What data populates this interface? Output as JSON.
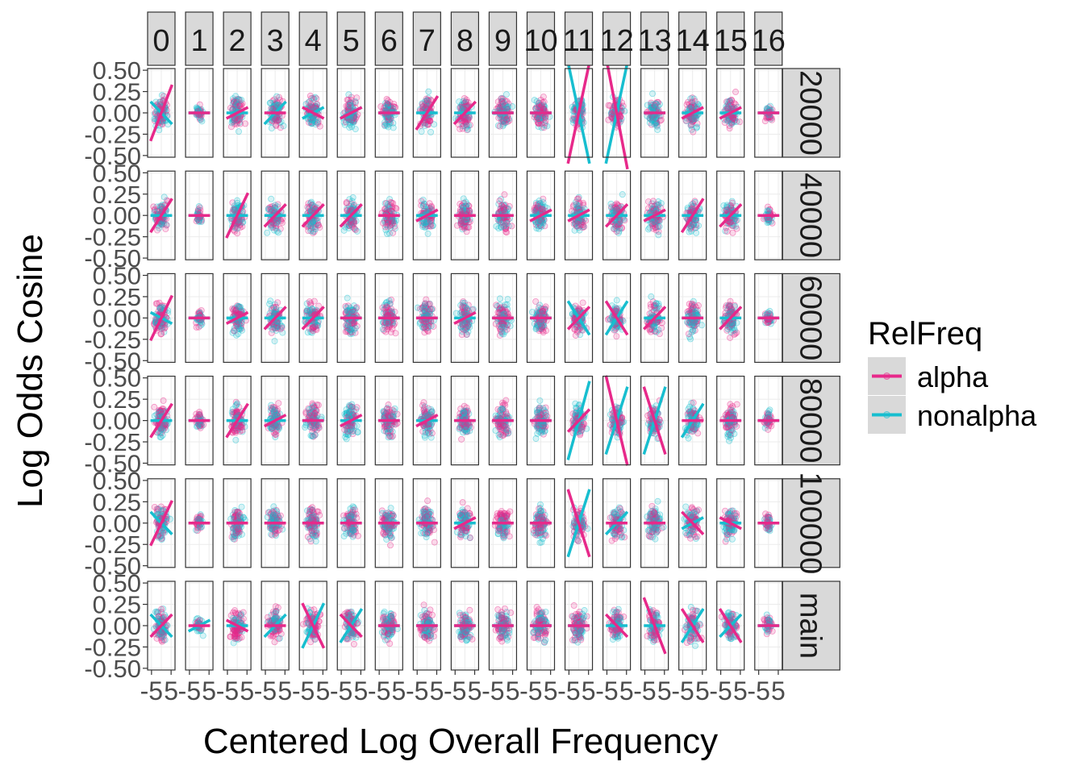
{
  "chart_data": {
    "type": "scatter",
    "title": "",
    "xlabel": "Centered Log Overall Frequency",
    "ylabel": "Log Odds Cosine",
    "x_tick_labels": [
      "-5",
      "5"
    ],
    "x_ticks": [
      -5,
      5
    ],
    "xlim": [
      -7,
      7
    ],
    "y_tick_labels": [
      "-0.50",
      "-0.25",
      "0.00",
      "0.25",
      "0.50"
    ],
    "y_ticks": [
      -0.5,
      -0.25,
      0.0,
      0.25,
      0.5
    ],
    "ylim": [
      -0.52,
      0.52
    ],
    "grid": true,
    "column_facets": [
      "0",
      "1",
      "2",
      "3",
      "4",
      "5",
      "6",
      "7",
      "8",
      "9",
      "10",
      "11",
      "12",
      "13",
      "14",
      "15",
      "16"
    ],
    "row_facets": [
      "20000",
      "40000",
      "60000",
      "80000",
      "100000",
      "main"
    ],
    "legend": {
      "title": "RelFreq",
      "placement": "right",
      "entries": [
        {
          "label": "alpha",
          "color": "#E7298A"
        },
        {
          "label": "nonalpha",
          "color": "#17BECF"
        }
      ]
    },
    "series": [
      {
        "name": "alpha",
        "color": "#E7298A"
      },
      {
        "name": "nonalpha",
        "color": "#17BECF"
      }
    ],
    "fit_lines_by_row": [
      {
        "row": "20000",
        "alpha_slope": [
          0.01,
          0.0,
          0.002,
          0.0,
          -0.002,
          0.002,
          0.0,
          0.006,
          0.004,
          0.0,
          0.0,
          0.018,
          -0.02,
          0.0,
          0.002,
          0.002,
          0.0
        ],
        "nonalpha_slope": [
          -0.004,
          0.0,
          0.0,
          0.004,
          0.002,
          0.002,
          0.0,
          0.0,
          0.0,
          0.0,
          0.0,
          -0.018,
          0.018,
          0.0,
          0.0,
          0.0,
          0.0
        ]
      },
      {
        "row": "40000",
        "alpha_slope": [
          0.006,
          0.0,
          0.008,
          0.004,
          0.004,
          0.004,
          0.0,
          0.002,
          0.0,
          0.0,
          0.002,
          0.002,
          0.004,
          0.002,
          0.006,
          0.004,
          0.0
        ],
        "nonalpha_slope": [
          0.0,
          0.0,
          0.0,
          0.0,
          0.0,
          0.0,
          0.0,
          0.0,
          0.0,
          0.0,
          0.0,
          0.0,
          0.0,
          0.0,
          0.0,
          0.0,
          0.0
        ]
      },
      {
        "row": "60000",
        "alpha_slope": [
          0.008,
          0.0,
          0.002,
          0.004,
          0.004,
          0.0,
          0.0,
          0.0,
          0.002,
          0.0,
          0.0,
          0.004,
          -0.006,
          0.004,
          0.0,
          0.004,
          0.0
        ],
        "nonalpha_slope": [
          -0.002,
          0.0,
          0.0,
          0.0,
          0.0,
          0.0,
          0.0,
          0.0,
          0.0,
          0.0,
          0.0,
          -0.006,
          0.006,
          0.0,
          0.0,
          0.0,
          0.0
        ]
      },
      {
        "row": "80000",
        "alpha_slope": [
          0.006,
          0.0,
          0.006,
          0.002,
          0.0,
          0.002,
          0.0,
          0.002,
          0.0,
          0.0,
          0.0,
          0.004,
          -0.016,
          -0.012,
          0.0,
          0.0,
          0.0
        ],
        "nonalpha_slope": [
          0.0,
          0.0,
          0.0,
          0.0,
          0.0,
          0.0,
          0.0,
          0.0,
          0.0,
          0.0,
          0.0,
          0.014,
          0.012,
          0.012,
          0.006,
          0.0,
          0.0
        ]
      },
      {
        "row": "100000",
        "alpha_slope": [
          0.008,
          0.0,
          0.0,
          0.0,
          0.0,
          0.0,
          0.0,
          0.0,
          0.002,
          0.0,
          0.0,
          -0.012,
          0.0,
          0.0,
          -0.004,
          -0.002,
          0.0
        ],
        "nonalpha_slope": [
          -0.004,
          0.0,
          0.0,
          0.0,
          0.0,
          0.0,
          0.0,
          0.0,
          0.0,
          0.0,
          0.0,
          0.012,
          0.004,
          0.0,
          0.002,
          0.0,
          0.0
        ]
      },
      {
        "row": "main",
        "alpha_slope": [
          0.004,
          0.0,
          -0.002,
          0.0,
          -0.008,
          -0.004,
          0.0,
          0.0,
          0.0,
          0.0,
          0.0,
          0.0,
          -0.004,
          -0.01,
          -0.006,
          -0.006,
          0.0
        ],
        "nonalpha_slope": [
          -0.004,
          0.002,
          0.0,
          0.004,
          0.008,
          0.006,
          0.0,
          0.0,
          0.0,
          0.0,
          0.0,
          0.0,
          0.0,
          0.0,
          0.006,
          0.004,
          0.0
        ]
      }
    ]
  }
}
